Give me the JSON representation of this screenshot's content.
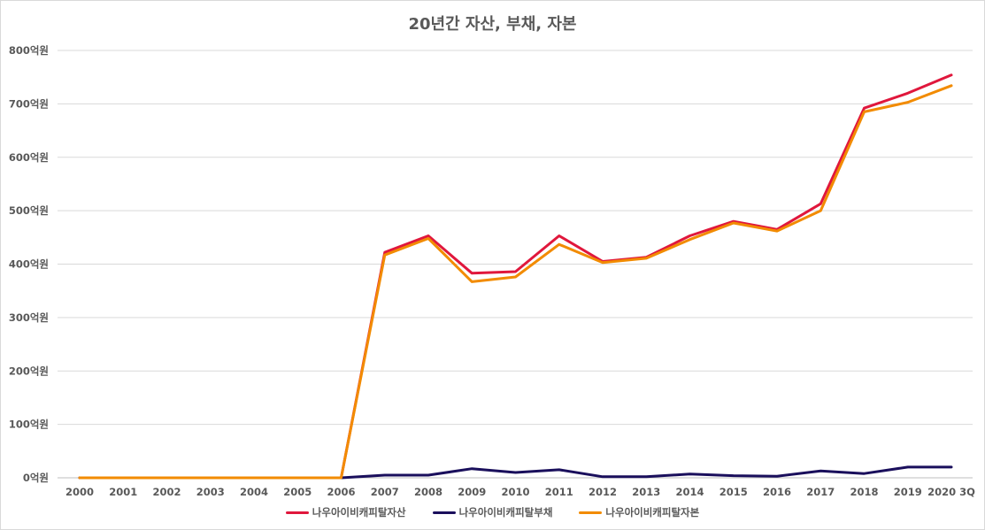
{
  "chart_data": {
    "type": "line",
    "title": "20년간 자산, 부채, 자본",
    "x": [
      "2000",
      "2001",
      "2002",
      "2003",
      "2004",
      "2005",
      "2006",
      "2007",
      "2008",
      "2009",
      "2010",
      "2011",
      "2012",
      "2013",
      "2014",
      "2015",
      "2016",
      "2017",
      "2018",
      "2019",
      "2020 3Q"
    ],
    "y_ticks": [
      "0억원",
      "100억원",
      "200억원",
      "300억원",
      "400억원",
      "500억원",
      "600억원",
      "700억원",
      "800억원"
    ],
    "ylim": [
      0,
      800
    ],
    "grid": true,
    "legend": "bottom",
    "series": [
      {
        "name": "나우아이비캐피탈자산",
        "color": "#e0173c",
        "values": [
          0,
          0,
          0,
          0,
          0,
          0,
          0,
          422,
          453,
          383,
          386,
          453,
          405,
          413,
          453,
          480,
          465,
          513,
          692,
          720,
          754
        ]
      },
      {
        "name": "나우아이비캐피탈부채",
        "color": "#1a0f5c",
        "values": [
          0,
          0,
          0,
          0,
          0,
          0,
          0,
          5,
          5,
          17,
          10,
          15,
          2,
          2,
          7,
          4,
          3,
          13,
          8,
          20,
          20
        ]
      },
      {
        "name": "나우아이비캐피탈자본",
        "color": "#f28b00",
        "values": [
          0,
          0,
          0,
          0,
          0,
          0,
          0,
          417,
          448,
          367,
          376,
          437,
          403,
          411,
          446,
          477,
          462,
          500,
          685,
          703,
          734
        ]
      }
    ]
  }
}
